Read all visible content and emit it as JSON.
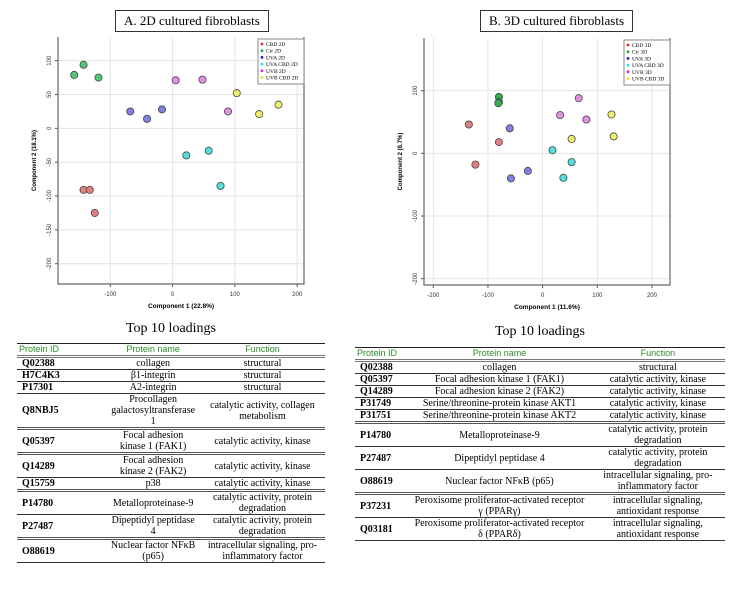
{
  "chart_data": [
    {
      "type": "scatter",
      "title": "A. 2D cultured fibroblasts",
      "xlabel": "Component 1 (22.8%)",
      "ylabel": "Component 2 (18.1%)",
      "xlim": [
        -184,
        211
      ],
      "ylim": [
        -230,
        135
      ],
      "xticks": [
        -100,
        0,
        100,
        200
      ],
      "yticks": [
        100,
        50,
        0,
        -50,
        -100,
        -150,
        -200
      ],
      "grid": true,
      "legend_position": "top-right",
      "series": [
        {
          "name": "CBD 2D",
          "color": "#e03030",
          "fill": "#e08080",
          "points": [
            [
              -143,
              -91
            ],
            [
              -133,
              -91
            ],
            [
              -125,
              -125
            ]
          ]
        },
        {
          "name": "Ctr 2D",
          "color": "#20b040",
          "fill": "#50c878",
          "points": [
            [
              -158,
              79
            ],
            [
              -143,
              94
            ],
            [
              -119,
              75
            ]
          ]
        },
        {
          "name": "UVA 2D",
          "color": "#2020c0",
          "fill": "#8080e0",
          "points": [
            [
              -68,
              25
            ],
            [
              -41,
              14
            ],
            [
              -17,
              28
            ]
          ]
        },
        {
          "name": "UVA CBD 2D",
          "color": "#20e0e0",
          "fill": "#50e0e0",
          "points": [
            [
              22,
              -40
            ],
            [
              58,
              -33
            ],
            [
              77,
              -85
            ]
          ]
        },
        {
          "name": "UVB 2D",
          "color": "#e020e0",
          "fill": "#e090e0",
          "points": [
            [
              5,
              71
            ],
            [
              48,
              72
            ],
            [
              89,
              25
            ]
          ]
        },
        {
          "name": "UVB CBD 2D",
          "color": "#e8e020",
          "fill": "#f0f070",
          "points": [
            [
              103,
              52
            ],
            [
              139,
              21
            ],
            [
              170,
              35
            ]
          ]
        }
      ]
    },
    {
      "type": "scatter",
      "title": "B. 3D cultured fibroblasts",
      "xlabel": "Component 1 (11.6%)",
      "ylabel": "Component 2 (8.7%)",
      "xlim": [
        -217,
        233
      ],
      "ylim": [
        -210,
        184
      ],
      "xticks": [
        -200,
        -100,
        0,
        100,
        200
      ],
      "yticks": [
        100,
        0,
        -100,
        -200
      ],
      "grid": true,
      "legend_position": "top-right",
      "series": [
        {
          "name": "CBD 3D",
          "color": "#e03030",
          "fill": "#e08080",
          "points": [
            [
              -135,
              46
            ],
            [
              -80,
              18
            ],
            [
              -123,
              -18
            ]
          ]
        },
        {
          "name": "Ctr 3D",
          "color": "#20b040",
          "fill": "#30b050",
          "points": [
            [
              -80,
              90
            ],
            [
              -80,
              82
            ],
            [
              -81,
              80
            ]
          ]
        },
        {
          "name": "UVA 3D",
          "color": "#2020c0",
          "fill": "#8080e0",
          "points": [
            [
              -60,
              40
            ],
            [
              -58,
              -40
            ],
            [
              -27,
              -28
            ]
          ]
        },
        {
          "name": "UVA CBD 3D",
          "color": "#20e0e0",
          "fill": "#50e0e0",
          "points": [
            [
              18,
              5
            ],
            [
              53,
              -14
            ],
            [
              38,
              -39
            ]
          ]
        },
        {
          "name": "UVB 3D",
          "color": "#e020e0",
          "fill": "#e090e0",
          "points": [
            [
              32,
              61
            ],
            [
              66,
              88
            ],
            [
              80,
              54
            ]
          ]
        },
        {
          "name": "UVB CBD 3D",
          "color": "#e8e020",
          "fill": "#f0f070",
          "points": [
            [
              53,
              23
            ],
            [
              126,
              62
            ],
            [
              130,
              27
            ]
          ]
        }
      ]
    }
  ],
  "tables": [
    {
      "title": "Top 10 loadings",
      "headers": [
        "Protein ID",
        "Protein name",
        "Function"
      ],
      "rows": [
        [
          "Q02388",
          "collagen",
          "structural"
        ],
        [
          "H7C4K3",
          "β1-integrin",
          "structural"
        ],
        [
          "P17301",
          "A2-integrin",
          "structural"
        ],
        [
          "Q8NBJ5",
          "Procollagen galactosyltransferase 1",
          "catalytic activity, collagen metabolism"
        ],
        [
          "Q05397",
          "Focal adhesion kinase 1 (FAK1)",
          "catalytic activity, kinase"
        ],
        [
          "Q14289",
          "Focal adhesion kinase 2 (FAK2)",
          "catalytic activity, kinase"
        ],
        [
          "Q15759",
          "p38",
          "catalytic activity, kinase"
        ],
        [
          "P14780",
          "Metalloproteinase-9",
          "catalytic activity, protein degradation"
        ],
        [
          "P27487",
          "Dipeptidyl peptidase 4",
          "catalytic activity, protein degradation"
        ],
        [
          "O88619",
          "Nuclear factor NFκB (p65)",
          "intracellular signaling, pro-inflammatory factor"
        ]
      ]
    },
    {
      "title": "Top 10 loadings",
      "headers": [
        "Protein ID",
        "Protein name",
        "Function"
      ],
      "rows": [
        [
          "Q02388",
          "collagen",
          "structural"
        ],
        [
          "Q05397",
          "Focal adhesion kinase 1 (FAK1)",
          "catalytic activity, kinase"
        ],
        [
          "Q14289",
          "Focal adhesion kinase 2 (FAK2)",
          "catalytic activity, kinase"
        ],
        [
          "P31749",
          "Serine/threonine-protein kinase AKT1",
          "catalytic activity, kinase"
        ],
        [
          "P31751",
          "Serine/threonine-protein kinase AKT2",
          "catalytic activity, kinase"
        ],
        [
          "P14780",
          "Metalloproteinase-9",
          "catalytic activity, protein degradation"
        ],
        [
          "P27487",
          "Dipeptidyl peptidase 4",
          "catalytic activity, protein degradation"
        ],
        [
          "O88619",
          "Nuclear factor NFκB (p65)",
          "intracellular signaling, pro-inflammatory factor"
        ],
        [
          "P37231",
          "Peroxisome proliferator-activated receptor γ (PPARγ)",
          "intracellular signaling, antioxidant response"
        ],
        [
          "Q03181",
          "Peroxisome proliferator-activated receptor δ (PPARδ)",
          "intracellular signaling, antioxidant response"
        ]
      ]
    }
  ]
}
